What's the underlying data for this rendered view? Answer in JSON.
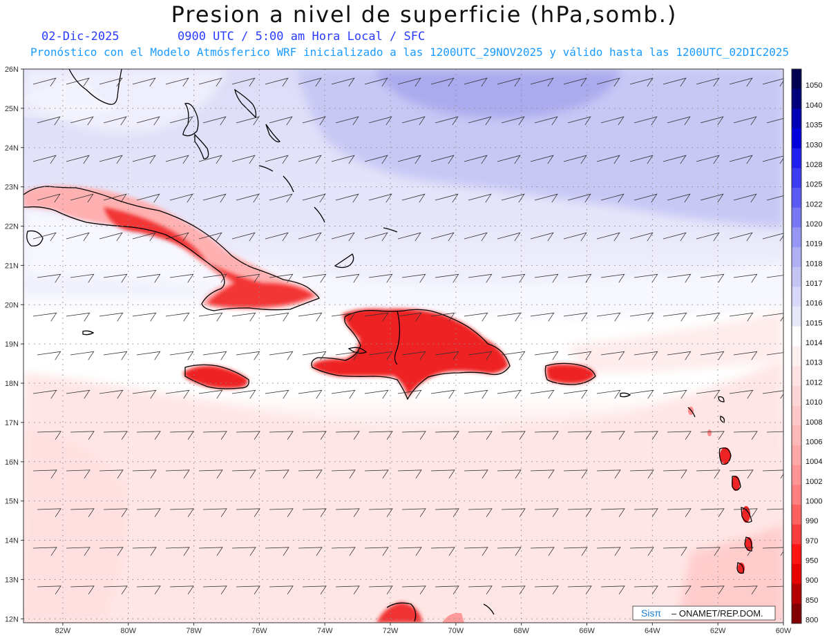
{
  "header": {
    "title": "Presion a nivel de superficie (hPa,somb.)",
    "date": "02-Dic-2025",
    "time_label": "0900 UTC / 5:00 am Hora Local / SFC",
    "description": "Pronóstico con el Modelo Atmósferico WRF inicializado a las 1200UTC_29NOV2025 y válido hasta las  1200UTC_02DIC2025"
  },
  "axes": {
    "lat_labels": [
      "26N",
      "25N",
      "24N",
      "23N",
      "22N",
      "21N",
      "20N",
      "19N",
      "18N",
      "17N",
      "16N",
      "15N",
      "14N",
      "13N",
      "12N"
    ],
    "lon_labels": [
      "82W",
      "80W",
      "78W",
      "76W",
      "74W",
      "72W",
      "70W",
      "68W",
      "66W",
      "64W",
      "62W",
      "60W"
    ]
  },
  "colorbar": {
    "labels": [
      "1050",
      "1040",
      "1035",
      "1030",
      "1028",
      "1025",
      "1022",
      "1020",
      "1019",
      "1018",
      "1017",
      "1016",
      "1015",
      "1014",
      "1013",
      "1012",
      "1010",
      "1008",
      "1006",
      "1004",
      "1002",
      "1000",
      "990",
      "970",
      "950",
      "900",
      "850",
      "800"
    ],
    "colors": [
      "#000050",
      "#00007d",
      "#0000b4",
      "#0000dc",
      "#1f1ff0",
      "#3c3cf5",
      "#5a5af5",
      "#7878f5",
      "#9696f5",
      "#afaff5",
      "#c4c4f5",
      "#d8d8f8",
      "#e8e8fb",
      "#ffffff",
      "#fff0f0",
      "#ffe3e3",
      "#ffd6d6",
      "#ffc8c8",
      "#ffb8b8",
      "#ffa8a8",
      "#ff9494",
      "#ff8080",
      "#ff6060",
      "#ff3c3c",
      "#ff1414",
      "#e60000",
      "#b40000",
      "#820000"
    ]
  },
  "credit": {
    "logo_text": "Sisπ",
    "text": "– ONAMET/REP.DOM."
  },
  "colors": {
    "high_pressure": "#b4b4f0",
    "mid_pressure": "#ffffff",
    "low_pressure": "#ffd8d8",
    "land_low": "#e81818",
    "coast": "#000000",
    "grid": "#888888"
  }
}
